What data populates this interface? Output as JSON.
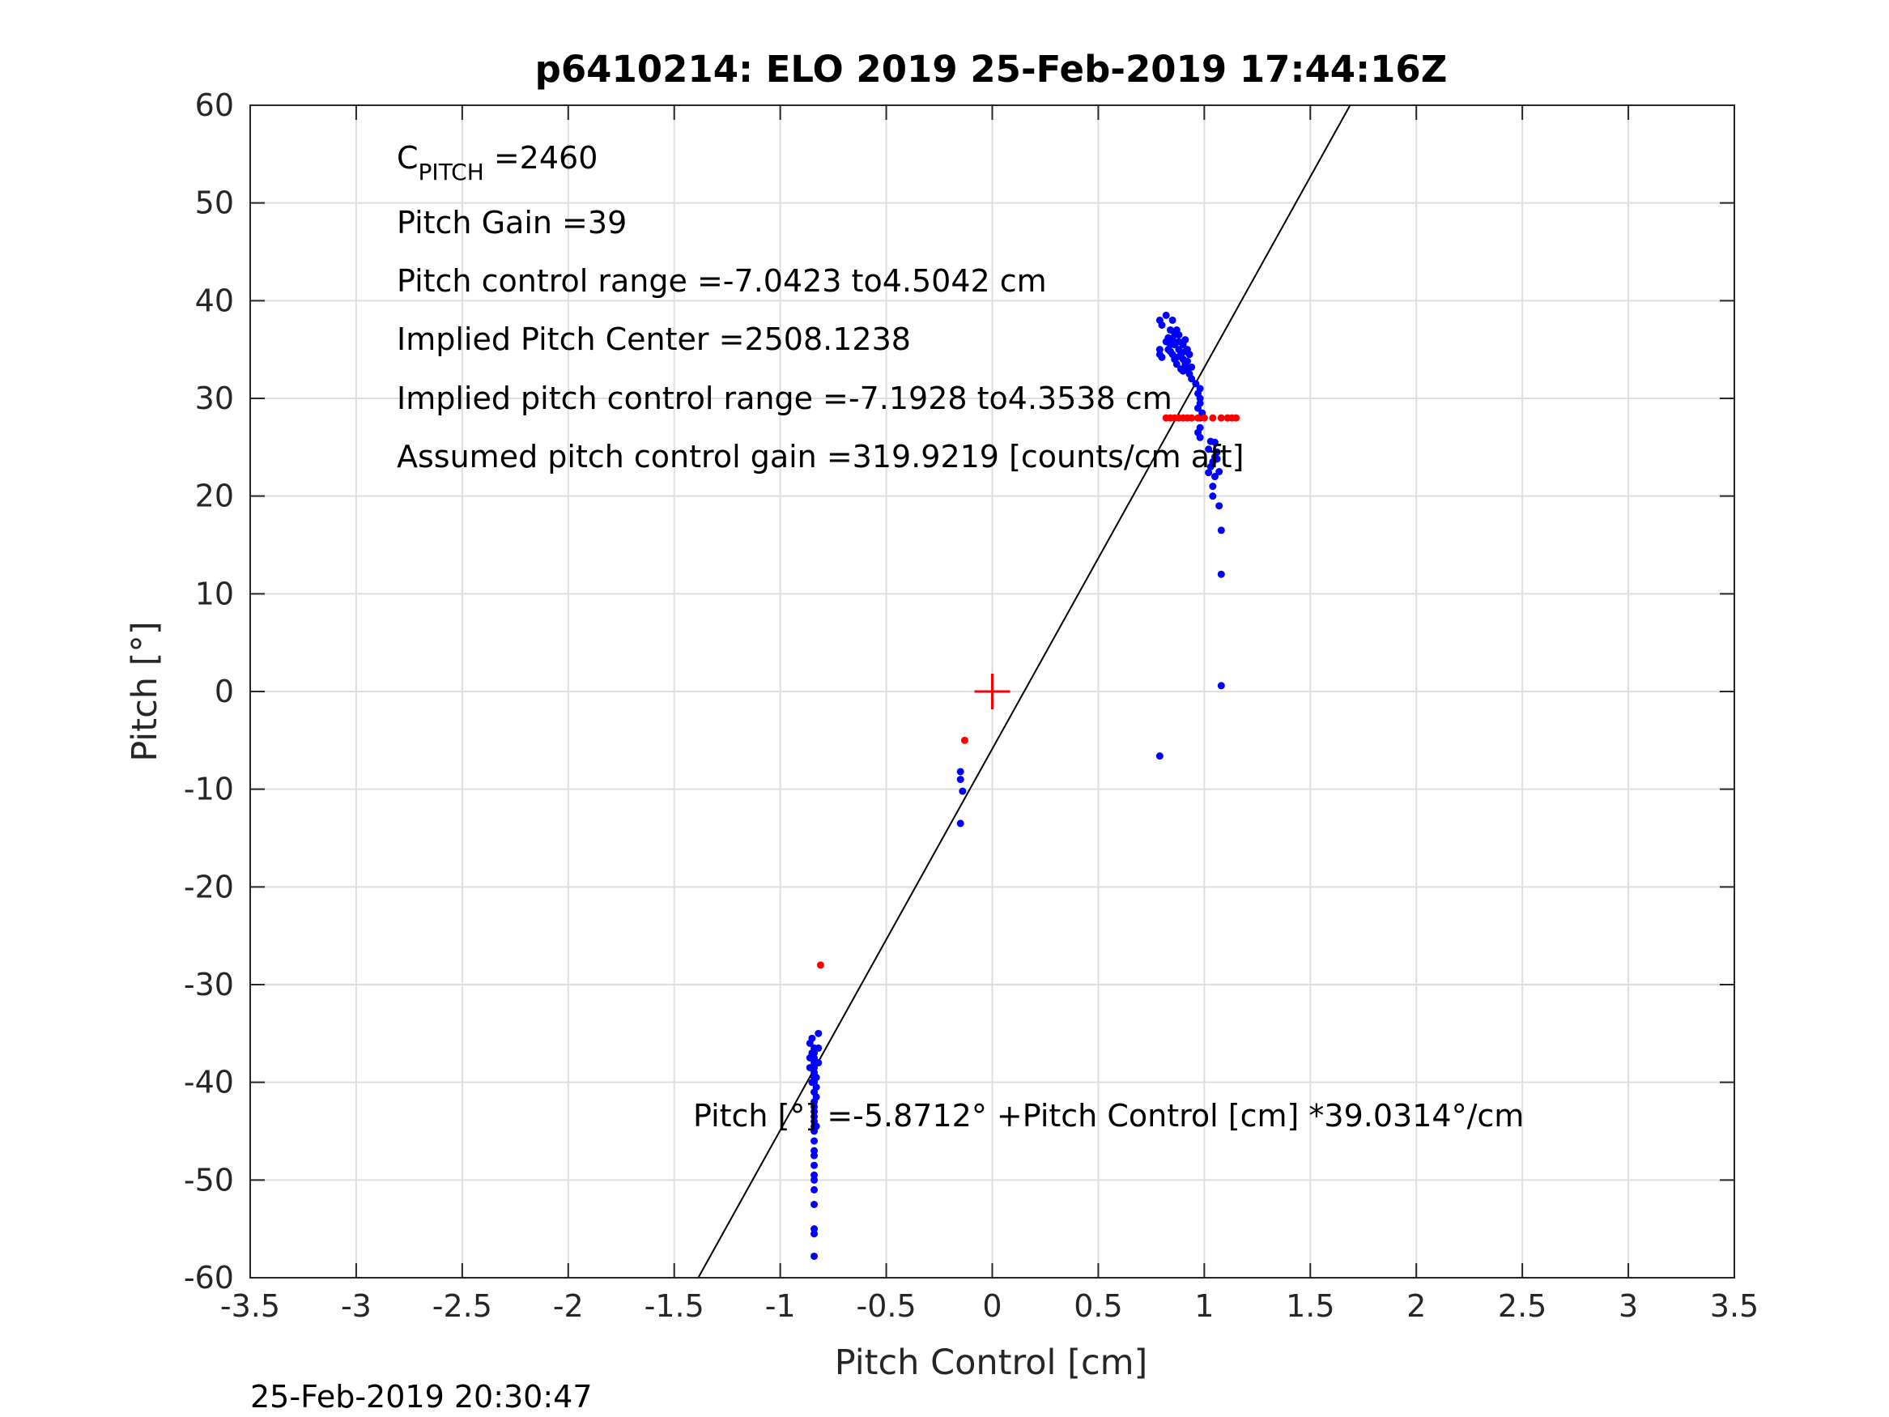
{
  "chart_data": {
    "type": "scatter",
    "title": "p6410214: ELO 2019 25-Feb-2019 17:44:16Z",
    "xlabel": "Pitch Control [cm]",
    "ylabel": "Pitch [°]",
    "xlim": [
      -3.5,
      3.5
    ],
    "ylim": [
      -60,
      60
    ],
    "xticks": [
      -3.5,
      -3,
      -2.5,
      -2,
      -1.5,
      -1,
      -0.5,
      0,
      0.5,
      1,
      1.5,
      2,
      2.5,
      3,
      3.5
    ],
    "xtick_labels": [
      "-3.5",
      "-3",
      "-2.5",
      "-2",
      "-1.5",
      "-1",
      "-0.5",
      "0",
      "0.5",
      "1",
      "1.5",
      "2",
      "2.5",
      "3",
      "3.5"
    ],
    "yticks": [
      -60,
      -50,
      -40,
      -30,
      -20,
      -10,
      0,
      10,
      20,
      30,
      40,
      50,
      60
    ],
    "ytick_labels": [
      "-60",
      "-50",
      "-40",
      "-30",
      "-20",
      "-10",
      "0",
      "10",
      "20",
      "30",
      "40",
      "50",
      "60"
    ],
    "grid": true,
    "annotations": {
      "c_pitch_main": "C",
      "c_pitch_sub": "PITCH",
      "c_pitch_value": " =2460",
      "pitch_gain": "Pitch Gain =39",
      "control_range": "Pitch control range =-7.0423 to4.5042 cm",
      "implied_center": "Implied Pitch Center =2508.1238",
      "implied_range": "Implied pitch control range =-7.1928 to4.3538 cm",
      "assumed_gain": "Assumed pitch control gain =319.9219 [counts/cm aft]",
      "fit_equation": "Pitch [°] =-5.8712° +Pitch Control [cm] *39.0314°/cm"
    },
    "fit_line": {
      "intercept": -5.8712,
      "slope": 39.0314,
      "color": "#000000"
    },
    "center_marker": {
      "x": 0,
      "y": 0,
      "color": "#ff0000"
    },
    "series": [
      {
        "color": "#0000ff",
        "points": [
          [
            -0.84,
            -57.8
          ],
          [
            -0.84,
            -55.5
          ],
          [
            -0.84,
            -55.0
          ],
          [
            -0.84,
            -52.5
          ],
          [
            -0.84,
            -51.0
          ],
          [
            -0.84,
            -50.0
          ],
          [
            -0.84,
            -49.5
          ],
          [
            -0.84,
            -48.5
          ],
          [
            -0.84,
            -47.5
          ],
          [
            -0.84,
            -47.0
          ],
          [
            -0.84,
            -46.0
          ],
          [
            -0.84,
            -45.0
          ],
          [
            -0.84,
            -44.5
          ],
          [
            -0.84,
            -44.0
          ],
          [
            -0.84,
            -43.5
          ],
          [
            -0.84,
            -43.0
          ],
          [
            -0.84,
            -42.5
          ],
          [
            -0.84,
            -42.0
          ],
          [
            -0.84,
            -41.0
          ],
          [
            -0.84,
            -40.0
          ],
          [
            -0.84,
            -39.5
          ],
          [
            -0.84,
            -39.0
          ],
          [
            -0.84,
            -38.5
          ],
          [
            -0.84,
            -38.0
          ],
          [
            -0.84,
            -37.5
          ],
          [
            -0.84,
            -37.0
          ],
          [
            -0.84,
            -36.5
          ],
          [
            -0.83,
            -41.5
          ],
          [
            -0.83,
            -40.5
          ],
          [
            -0.83,
            -39.5
          ],
          [
            -0.83,
            -38.0
          ],
          [
            -0.85,
            -37.0
          ],
          [
            -0.85,
            -38.5
          ],
          [
            -0.86,
            -36.0
          ],
          [
            -0.86,
            -37.5
          ],
          [
            -0.86,
            -38.5
          ],
          [
            -0.85,
            -35.5
          ],
          [
            -0.82,
            -35.0
          ],
          [
            -0.82,
            -36.5
          ],
          [
            -0.82,
            -38.0
          ],
          [
            -0.85,
            -40.0
          ],
          [
            -0.83,
            -44.5
          ],
          [
            -0.15,
            -8.2
          ],
          [
            -0.15,
            -9.0
          ],
          [
            -0.14,
            -10.2
          ],
          [
            -0.15,
            -13.5
          ],
          [
            0.79,
            -6.6
          ],
          [
            1.08,
            0.6
          ],
          [
            1.08,
            12.0
          ],
          [
            1.08,
            16.5
          ],
          [
            1.07,
            19.0
          ],
          [
            1.04,
            20.0
          ],
          [
            1.04,
            21.0
          ],
          [
            1.05,
            22.0
          ],
          [
            1.07,
            22.5
          ],
          [
            1.03,
            23.0
          ],
          [
            1.04,
            23.5
          ],
          [
            1.05,
            24.0
          ],
          [
            1.06,
            24.5
          ],
          [
            1.02,
            24.8
          ],
          [
            1.05,
            25.5
          ],
          [
            1.03,
            25.6
          ],
          [
            1.06,
            23.8
          ],
          [
            1.02,
            22.4
          ],
          [
            0.97,
            26.5
          ],
          [
            0.98,
            27.0
          ],
          [
            0.98,
            28.0
          ],
          [
            0.97,
            29.0
          ],
          [
            0.98,
            29.5
          ],
          [
            0.98,
            30.0
          ],
          [
            0.97,
            30.5
          ],
          [
            0.98,
            31.0
          ],
          [
            0.96,
            31.5
          ],
          [
            0.99,
            28.5
          ],
          [
            0.98,
            26.0
          ],
          [
            0.94,
            32.0
          ],
          [
            0.93,
            32.5
          ],
          [
            0.92,
            33.0
          ],
          [
            0.91,
            33.5
          ],
          [
            0.9,
            34.0
          ],
          [
            0.89,
            34.5
          ],
          [
            0.88,
            35.0
          ],
          [
            0.9,
            35.5
          ],
          [
            0.91,
            36.0
          ],
          [
            0.93,
            34.5
          ],
          [
            0.92,
            35.0
          ],
          [
            0.87,
            33.5
          ],
          [
            0.86,
            34.0
          ],
          [
            0.88,
            36.5
          ],
          [
            0.89,
            33.0
          ],
          [
            0.91,
            34.8
          ],
          [
            0.92,
            33.8
          ],
          [
            0.9,
            32.8
          ],
          [
            0.94,
            33.2
          ],
          [
            0.83,
            35.0
          ],
          [
            0.84,
            35.5
          ],
          [
            0.85,
            36.0
          ],
          [
            0.86,
            36.5
          ],
          [
            0.84,
            37.0
          ],
          [
            0.85,
            38.0
          ],
          [
            0.82,
            38.5
          ],
          [
            0.87,
            37.0
          ],
          [
            0.86,
            35.5
          ],
          [
            0.83,
            36.2
          ],
          [
            0.84,
            34.8
          ],
          [
            0.8,
            37.5
          ],
          [
            0.79,
            38.0
          ],
          [
            0.79,
            35.0
          ],
          [
            0.79,
            34.5
          ],
          [
            0.8,
            34.2
          ],
          [
            0.82,
            35.8
          ],
          [
            0.86,
            36.8
          ],
          [
            0.88,
            35.8
          ],
          [
            0.85,
            34.5
          ],
          [
            0.87,
            34.2
          ]
        ]
      },
      {
        "color": "#ff0000",
        "points": [
          [
            -0.81,
            -28.0
          ],
          [
            -0.13,
            -5.0
          ],
          [
            0.82,
            28.0
          ],
          [
            0.84,
            28.0
          ],
          [
            0.86,
            28.0
          ],
          [
            0.88,
            28.0
          ],
          [
            0.9,
            28.0
          ],
          [
            0.92,
            28.0
          ],
          [
            0.94,
            28.0
          ],
          [
            0.97,
            28.0
          ],
          [
            1.0,
            28.0
          ],
          [
            1.04,
            28.0
          ],
          [
            1.08,
            28.0
          ],
          [
            1.11,
            28.0
          ],
          [
            1.13,
            28.0
          ],
          [
            1.15,
            28.0
          ]
        ]
      }
    ]
  },
  "footer_timestamp": "25-Feb-2019 20:30:47"
}
